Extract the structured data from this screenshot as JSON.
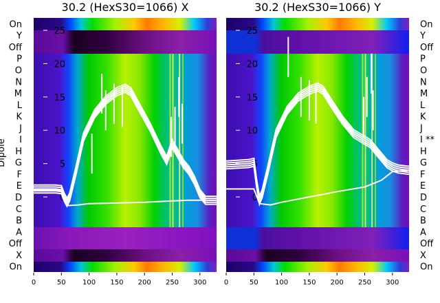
{
  "chart_data": [
    {
      "type": "heatmap",
      "title": "30.2 (HexS30=1066) X",
      "ylabel": "Dipole",
      "xlim": [
        0,
        330
      ],
      "x_ticks": [
        0,
        50,
        100,
        150,
        200,
        250,
        300
      ],
      "rows": [
        "On",
        "Y",
        "Off",
        "P",
        "O",
        "N",
        "M",
        "L",
        "K",
        "J",
        "I",
        "H",
        "G",
        "F",
        "E",
        "D",
        "C",
        "B",
        "A",
        "Off",
        "X",
        "On"
      ],
      "overlay": {
        "type": "line",
        "ylim": [
          -2,
          27
        ],
        "y_ticks": [
          0,
          5,
          10,
          15,
          20,
          25
        ],
        "profile_x": [
          0,
          40,
          50,
          55,
          60,
          65,
          75,
          90,
          110,
          130,
          150,
          165,
          175,
          190,
          210,
          230,
          240,
          250,
          260,
          270,
          280,
          290,
          300,
          310,
          330
        ],
        "profile_y": [
          1.2,
          1.2,
          1.1,
          0.0,
          -0.8,
          0.0,
          3.5,
          9.0,
          12.5,
          14.5,
          15.8,
          16.3,
          15.8,
          13.5,
          10.5,
          7.0,
          5.5,
          8.0,
          6.5,
          5.0,
          4.0,
          2.5,
          0.5,
          -0.5,
          -0.5
        ],
        "baseline_x": [
          0,
          50,
          60,
          80,
          100,
          150,
          200,
          250,
          280,
          300,
          330
        ],
        "baseline_y": [
          1.0,
          1.0,
          -1.3,
          -1.2,
          -1.0,
          -0.9,
          -0.8,
          -0.6,
          -0.5,
          -0.5,
          -0.5
        ],
        "spikes_x": [
          105,
          123,
          130,
          145,
          160,
          248,
          255,
          262,
          268
        ],
        "spikes_y": [
          9.5,
          18.5,
          16.0,
          17.0,
          16.5,
          12.0,
          13.5,
          18.0,
          14.0
        ]
      }
    },
    {
      "type": "heatmap",
      "title": "30.2 (HexS30=1066) Y",
      "xlim": [
        0,
        330
      ],
      "x_ticks": [
        0,
        50,
        100,
        150,
        200,
        250,
        300
      ],
      "rows": [
        "On",
        "Y",
        "Off",
        "P",
        "O",
        "N",
        "M",
        "L",
        "K",
        "J",
        "I **",
        "H",
        "G",
        "F",
        "E",
        "D",
        "C",
        "B",
        "A",
        "Off",
        "X",
        "On"
      ],
      "overlay": {
        "type": "line",
        "ylim": [
          -2,
          27
        ],
        "y_ticks": [
          0,
          5,
          10,
          15,
          20,
          25
        ],
        "profile_x": [
          0,
          40,
          50,
          55,
          60,
          65,
          75,
          90,
          110,
          130,
          150,
          165,
          175,
          190,
          210,
          230,
          240,
          250,
          260,
          270,
          280,
          290,
          300,
          310,
          330
        ],
        "profile_y": [
          4.8,
          5.0,
          5.2,
          2.0,
          -0.5,
          0.5,
          4.0,
          9.5,
          13.0,
          15.0,
          16.0,
          16.5,
          16.0,
          14.0,
          11.5,
          9.5,
          9.0,
          8.5,
          8.0,
          7.0,
          6.0,
          5.0,
          4.5,
          4.2,
          4.0
        ],
        "baseline_x": [
          0,
          50,
          60,
          80,
          100,
          150,
          200,
          250,
          280,
          300,
          330
        ],
        "baseline_y": [
          1.2,
          1.2,
          -1.0,
          -1.2,
          -0.8,
          0.0,
          0.8,
          1.5,
          2.5,
          3.8,
          4.0
        ],
        "spikes_x": [
          112,
          135,
          150,
          162,
          248,
          254,
          262,
          265
        ],
        "spikes_y": [
          24.0,
          18.0,
          17.5,
          17.0,
          15.0,
          18.0,
          21.5,
          16.0
        ]
      }
    }
  ]
}
